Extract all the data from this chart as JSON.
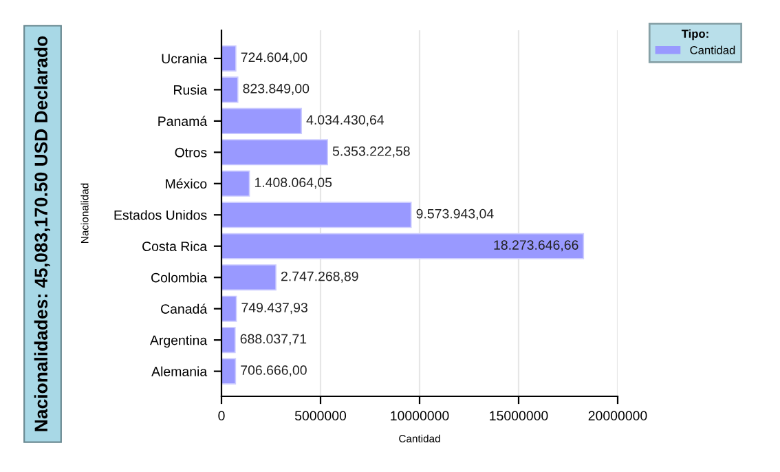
{
  "chart_data": {
    "type": "bar",
    "orientation": "horizontal",
    "title": "Nacionalidades: 45,083,170.50 USD Declarado",
    "xlabel": "Cantidad",
    "ylabel": "Nacionalidad",
    "legend_title": "Tipo:",
    "legend": "top right",
    "grid": "x",
    "categories": [
      "Ucrania",
      "Rusia",
      "Panamá",
      "Otros",
      "México",
      "Estados Unidos",
      "Costa Rica",
      "Colombia",
      "Canadá",
      "Argentina",
      "Alemania"
    ],
    "series": [
      {
        "name": "Cantidad",
        "color": "#9999ff",
        "values": [
          724604.0,
          823849.0,
          4034430.64,
          5353222.58,
          1408064.05,
          9573943.04,
          18273646.66,
          2747268.89,
          749437.93,
          688037.71,
          706666.0
        ],
        "value_labels": [
          "724.604,00",
          "823.849,00",
          "4.034.430,64",
          "5.353.222,58",
          "1.408.064,05",
          "9.573.943,04",
          "18.273.646,66",
          "2.747.268,89",
          "749.437,93",
          "688.037,71",
          "706.666,00"
        ]
      }
    ],
    "xlim": [
      0,
      20000000
    ],
    "xticks": [
      0,
      5000000,
      10000000,
      15000000,
      20000000
    ]
  }
}
